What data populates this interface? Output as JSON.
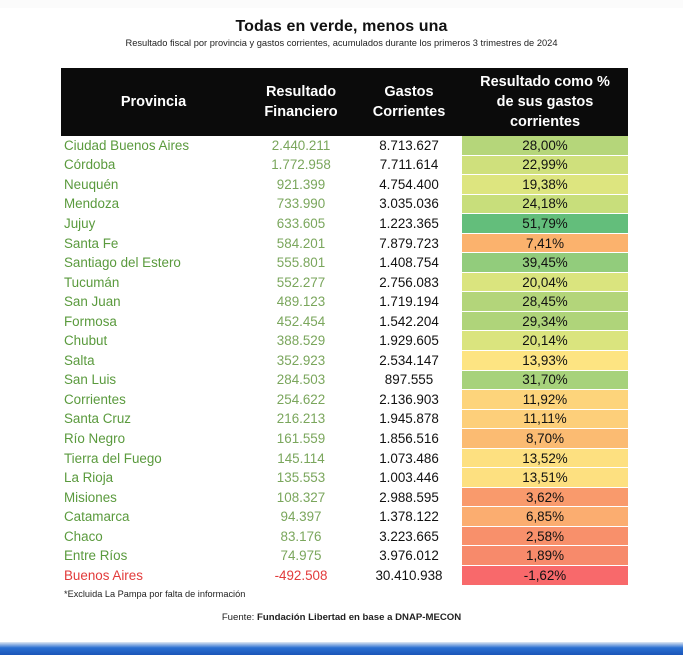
{
  "title": "Todas en verde, menos una",
  "subtitle": "Resultado fiscal por provincia y gastos corrientes, acumulados durante los primeros 3 trimestres de 2024",
  "table": {
    "headers": {
      "provincia": "Provincia",
      "resultado": "Resultado Financiero",
      "gastos": "Gastos Corrientes",
      "porcentaje": "Resultado como % de sus gastos corrientes"
    },
    "rows": [
      {
        "provincia": "Ciudad Buenos Aires",
        "resultado": "2.440.211",
        "gastos": "8.713.627",
        "porcentaje": "28,00%",
        "color": "#b5d67a"
      },
      {
        "provincia": "Córdoba",
        "resultado": "1.772.958",
        "gastos": "7.711.614",
        "porcentaje": "22,99%",
        "color": "#cfe07c"
      },
      {
        "provincia": "Neuquén",
        "resultado": "921.399",
        "gastos": "4.754.400",
        "porcentaje": "19,38%",
        "color": "#dde57f"
      },
      {
        "provincia": "Mendoza",
        "resultado": "733.990",
        "gastos": "3.035.036",
        "porcentaje": "24,18%",
        "color": "#c8de7b"
      },
      {
        "provincia": "Jujuy",
        "resultado": "633.605",
        "gastos": "1.223.365",
        "porcentaje": "51,79%",
        "color": "#63be7b"
      },
      {
        "provincia": "Santa Fe",
        "resultado": "584.201",
        "gastos": "7.879.723",
        "porcentaje": "7,41%",
        "color": "#fbb26d"
      },
      {
        "provincia": "Santiago del Estero",
        "resultado": "555.801",
        "gastos": "1.408.754",
        "porcentaje": "39,45%",
        "color": "#92cc7c"
      },
      {
        "provincia": "Tucumán",
        "resultado": "552.277",
        "gastos": "2.756.083",
        "porcentaje": "20,04%",
        "color": "#dae47e"
      },
      {
        "provincia": "San Juan",
        "resultado": "489.123",
        "gastos": "1.719.194",
        "porcentaje": "28,45%",
        "color": "#b3d57a"
      },
      {
        "provincia": "Formosa",
        "resultado": "452.454",
        "gastos": "1.542.204",
        "porcentaje": "29,34%",
        "color": "#afd47a"
      },
      {
        "provincia": "Chubut",
        "resultado": "388.529",
        "gastos": "1.929.605",
        "porcentaje": "20,14%",
        "color": "#dae47e"
      },
      {
        "provincia": "Salta",
        "resultado": "352.923",
        "gastos": "2.534.147",
        "porcentaje": "13,93%",
        "color": "#fde482"
      },
      {
        "provincia": "San Luis",
        "resultado": "284.503",
        "gastos": "897.555",
        "porcentaje": "31,70%",
        "color": "#a7d27b"
      },
      {
        "provincia": "Corrientes",
        "resultado": "254.622",
        "gastos": "2.136.903",
        "porcentaje": "11,92%",
        "color": "#fdd47b"
      },
      {
        "provincia": "Santa Cruz",
        "resultado": "216.213",
        "gastos": "1.945.878",
        "porcentaje": "11,11%",
        "color": "#fdcf7a"
      },
      {
        "provincia": "Río Negro",
        "resultado": "161.559",
        "gastos": "1.856.516",
        "porcentaje": "8,70%",
        "color": "#fbbb72"
      },
      {
        "provincia": "Tierra del Fuego",
        "resultado": "145.114",
        "gastos": "1.073.486",
        "porcentaje": "13,52%",
        "color": "#fde080"
      },
      {
        "provincia": "La Rioja",
        "resultado": "135.553",
        "gastos": "1.003.446",
        "porcentaje": "13,51%",
        "color": "#fde080"
      },
      {
        "provincia": "Misiones",
        "resultado": "108.327",
        "gastos": "2.988.595",
        "porcentaje": "3,62%",
        "color": "#f99a6c"
      },
      {
        "provincia": "Catamarca",
        "resultado": "94.397",
        "gastos": "1.378.122",
        "porcentaje": "6,85%",
        "color": "#fbad70"
      },
      {
        "provincia": "Chaco",
        "resultado": "83.176",
        "gastos": "3.223.665",
        "porcentaje": "2,58%",
        "color": "#f8906b"
      },
      {
        "provincia": "Entre Ríos",
        "resultado": "74.975",
        "gastos": "3.976.012",
        "porcentaje": "1,89%",
        "color": "#f78a6b"
      },
      {
        "provincia": "Buenos Aires",
        "resultado": "-492.508",
        "gastos": "30.410.938",
        "porcentaje": "-1,62%",
        "color": "#f8696b",
        "negative": true
      }
    ]
  },
  "note": "*Excluida La Pampa por falta de información",
  "source": {
    "prefix": "Fuente: ",
    "name": "Fundación Libertad en base a DNAP-MECON"
  },
  "colors": {
    "header_bg": "#0b0b0b",
    "province_text": "#5a9a3d",
    "negative_text": "#e23b3b",
    "bottom_bar": "#1a55b8"
  }
}
